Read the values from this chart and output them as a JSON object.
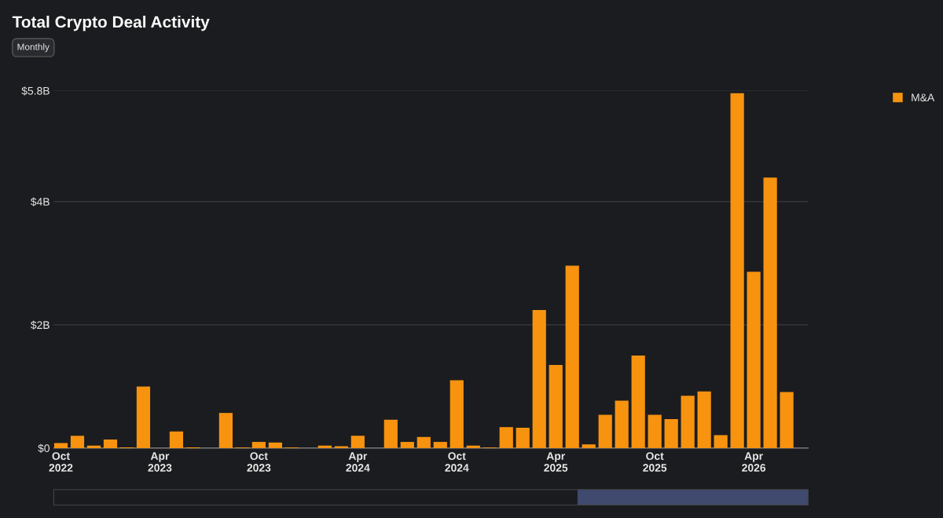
{
  "chart_data": {
    "type": "bar",
    "title": "Total Crypto Deal Activity",
    "annotations": [
      "Monthly"
    ],
    "x": [
      "2022-10",
      "2022-11",
      "2022-12",
      "2023-01",
      "2023-02",
      "2023-03",
      "2023-04",
      "2023-05",
      "2023-06",
      "2023-07",
      "2023-08",
      "2023-09",
      "2023-10",
      "2023-11",
      "2023-12",
      "2024-01",
      "2024-02",
      "2024-03",
      "2024-04",
      "2024-05",
      "2024-06",
      "2024-07",
      "2024-08",
      "2024-09",
      "2024-10",
      "2024-11",
      "2024-12",
      "2025-01",
      "2025-02",
      "2025-03",
      "2025-04",
      "2025-05",
      "2025-06",
      "2025-07",
      "2025-08",
      "2025-09",
      "2025-10",
      "2025-11",
      "2025-12",
      "2026-01",
      "2026-02",
      "2026-03",
      "2026-04",
      "2026-05",
      "2026-06"
    ],
    "series": [
      {
        "name": "M&A",
        "color": "#f7930f",
        "values": [
          0.08,
          0.2,
          0.04,
          0.14,
          0.01,
          1.0,
          0,
          0.27,
          0.01,
          0,
          0.57,
          0.01,
          0.1,
          0.09,
          0.01,
          0,
          0.04,
          0.03,
          0.2,
          0,
          0.46,
          0.1,
          0.18,
          0.1,
          1.1,
          0.04,
          0.01,
          0.34,
          0.33,
          2.24,
          1.35,
          2.96,
          0.06,
          0.54,
          0.77,
          1.5,
          0.54,
          0.47,
          0.85,
          0.92,
          0.21,
          5.76,
          2.86,
          4.39,
          0.91
        ]
      }
    ],
    "ylim": [
      0,
      5.8
    ],
    "yticks": [
      {
        "value": 0,
        "label": "$0"
      },
      {
        "value": 2,
        "label": "$2B"
      },
      {
        "value": 4,
        "label": "$4B"
      },
      {
        "value": 5.8,
        "label": "$5.8B"
      }
    ],
    "xlim": [
      "2022-09-18",
      "2026-07-10"
    ],
    "xticks": [
      {
        "value": "2022-10",
        "label": "Oct\n2022"
      },
      {
        "value": "2023-04",
        "label": "Apr\n2023"
      },
      {
        "value": "2023-10",
        "label": "Oct\n2023"
      },
      {
        "value": "2024-04",
        "label": "Apr\n2024"
      },
      {
        "value": "2024-10",
        "label": "Oct\n2024"
      },
      {
        "value": "2025-04",
        "label": "Apr\n2025"
      },
      {
        "value": "2025-10",
        "label": "Oct\n2025"
      },
      {
        "value": "2026-04",
        "label": "Apr\n2026"
      }
    ],
    "grid": "y",
    "legend": "top right"
  }
}
